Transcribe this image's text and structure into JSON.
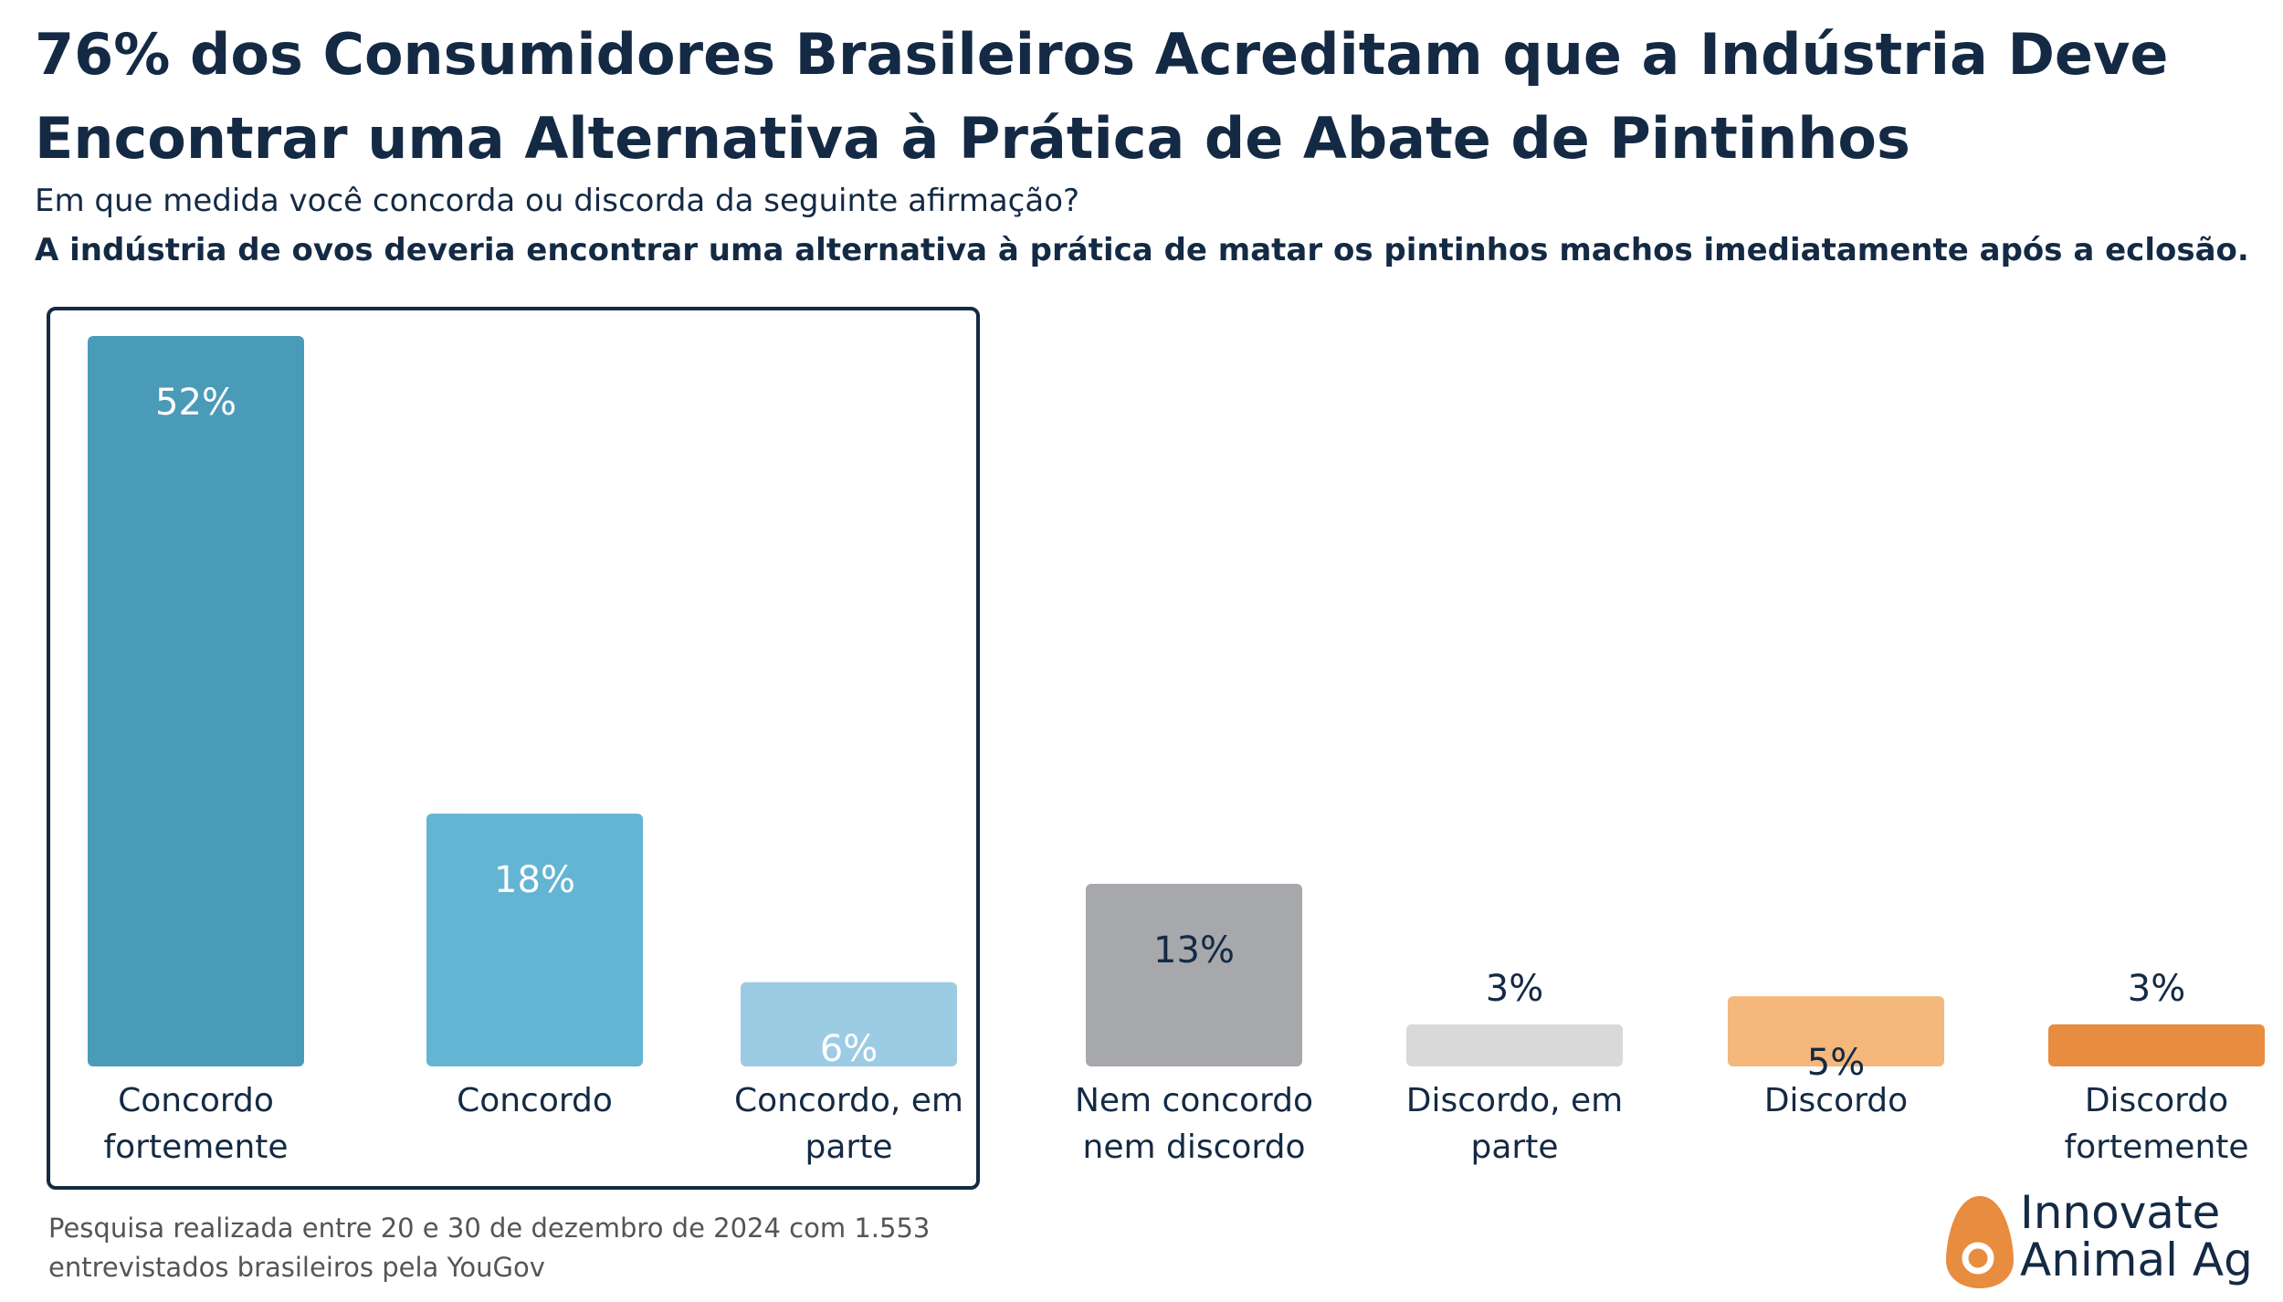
{
  "chart_data": {
    "type": "bar",
    "title": "76% dos Consumidores Brasileiros Acreditam que a Indústria Deve Encontrar uma Alternativa à Prática de Abate de Pintinhos",
    "subtitle": [
      "Em que medida você concorda ou discorda da seguinte afirmação?",
      "A indústria de ovos deveria encontrar uma alternativa à prática de matar os pintinhos machos imediatamente após a eclosão."
    ],
    "categories": [
      "Concordo fortemente",
      "Concordo",
      "Concordo, em parte",
      "Nem concordo nem discordo",
      "Discordo, em parte",
      "Discordo",
      "Discordo fortemente"
    ],
    "values": [
      52,
      18,
      6,
      13,
      3,
      5,
      3
    ],
    "value_labels": [
      "52%",
      "18%",
      "6%",
      "13%",
      "3%",
      "5%",
      "3%"
    ],
    "colors": [
      "#4a9bb8",
      "#64b4d3",
      "#9ccbe4",
      "#a7a8ac",
      "#d9d9d9",
      "#f4b77c",
      "#e88c40"
    ],
    "label_colors": [
      "#ffffff",
      "#ffffff",
      "#ffffff",
      "#142a44",
      "#142a44",
      "#142a44",
      "#142a44"
    ],
    "note": "Pesquisa realizada entre 20 e 30 de dezembro de 2024 com 1.553 entrevistados brasileiros pela YouGov",
    "logo": "Innovate Animal Ag"
  }
}
